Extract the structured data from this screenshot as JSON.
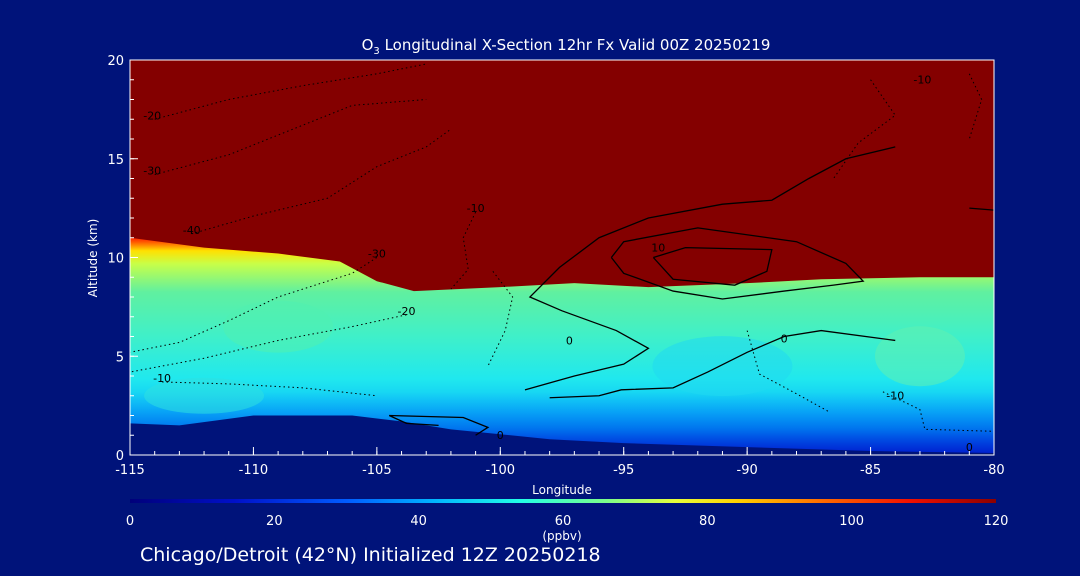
{
  "chart_data": {
    "type": "heatmap",
    "title": "O3 Longitudinal X-Section 12hr  Fx Valid 00Z 20250219",
    "title_parts": {
      "pre": "O",
      "sub": "3",
      "post": " Longitudinal X-Section 12hr  Fx Valid 00Z 20250219"
    },
    "xlabel": "Longitude",
    "ylabel": "Altitude (km)",
    "xlim": [
      -115,
      -80
    ],
    "ylim": [
      0,
      20
    ],
    "x_ticks": [
      -115,
      -110,
      -105,
      -100,
      -95,
      -90,
      -85,
      -80
    ],
    "y_ticks": [
      0,
      5,
      10,
      15,
      20
    ],
    "colorbar": {
      "label": "(ppbv)",
      "range": [
        0,
        120
      ],
      "ticks": [
        0,
        20,
        40,
        60,
        80,
        100,
        120
      ]
    },
    "stratosphere_boundary_km": [
      [
        -115,
        11.0
      ],
      [
        -112,
        10.5
      ],
      [
        -109,
        10.2
      ],
      [
        -106.5,
        9.8
      ],
      [
        -105,
        8.8
      ],
      [
        -103.5,
        8.3
      ],
      [
        -100,
        8.5
      ],
      [
        -97,
        8.7
      ],
      [
        -94,
        8.5
      ],
      [
        -90,
        8.7
      ],
      [
        -87,
        8.9
      ],
      [
        -83,
        9.0
      ],
      [
        -80,
        9.0
      ]
    ],
    "surface_km": [
      [
        -115,
        1.6
      ],
      [
        -113,
        1.5
      ],
      [
        -110,
        2.0
      ],
      [
        -106,
        2.0
      ],
      [
        -104,
        1.7
      ],
      [
        -102,
        1.3
      ],
      [
        -98,
        0.8
      ],
      [
        -95,
        0.6
      ],
      [
        -90,
        0.4
      ],
      [
        -85,
        0.2
      ],
      [
        -80,
        0.1
      ]
    ],
    "contour_labels": [
      {
        "lon": -114.1,
        "alt": 17.0,
        "text": "-20"
      },
      {
        "lon": -114.1,
        "alt": 14.2,
        "text": "-30"
      },
      {
        "lon": -112.5,
        "alt": 11.2,
        "text": "-40"
      },
      {
        "lon": -105.0,
        "alt": 10.0,
        "text": "-30"
      },
      {
        "lon": -103.8,
        "alt": 7.1,
        "text": "-20"
      },
      {
        "lon": -101.0,
        "alt": 12.3,
        "text": "-10"
      },
      {
        "lon": -113.7,
        "alt": 3.7,
        "text": "-10"
      },
      {
        "lon": -97.2,
        "alt": 5.6,
        "text": "0"
      },
      {
        "lon": -93.6,
        "alt": 10.3,
        "text": "10"
      },
      {
        "lon": -88.5,
        "alt": 5.7,
        "text": "0"
      },
      {
        "lon": -84.0,
        "alt": 2.8,
        "text": "-10"
      },
      {
        "lon": -82.9,
        "alt": 18.8,
        "text": "-10"
      },
      {
        "lon": -100.0,
        "alt": 0.8,
        "text": "0"
      },
      {
        "lon": -81.0,
        "alt": 0.2,
        "text": "0"
      }
    ],
    "annotation": "Chicago/Detroit (42°N) Initialized 12Z 20250218"
  }
}
